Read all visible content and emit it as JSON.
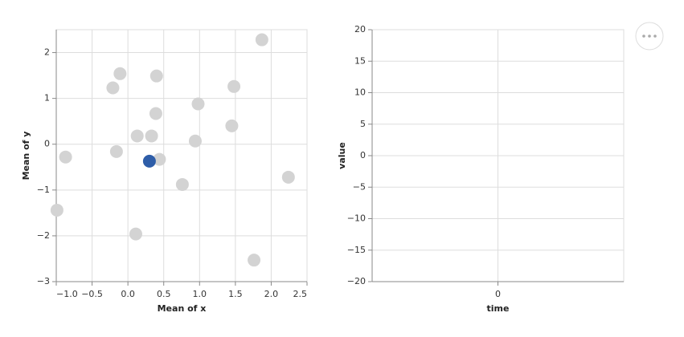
{
  "chart_data": [
    {
      "type": "scatter",
      "x_label": "Mean of x",
      "y_label": "Mean of y",
      "x": [
        1.87,
        -0.11,
        0.4,
        -0.21,
        1.48,
        0.39,
        0.98,
        1.45,
        0.13,
        0.33,
        0.94,
        -0.87,
        -0.16,
        0.44,
        2.24,
        0.76,
        -0.99,
        0.11,
        1.76,
        0.3
      ],
      "values": [
        2.28,
        1.54,
        1.49,
        1.23,
        1.26,
        0.67,
        0.88,
        0.4,
        0.18,
        0.18,
        0.07,
        -0.28,
        -0.16,
        -0.33,
        -0.72,
        -0.88,
        -1.44,
        -1.96,
        -2.53,
        -0.37
      ],
      "color": "#d3d3d3",
      "selected": 19,
      "selected_color": "#2e5da8",
      "xlim": [
        -1,
        2.5
      ],
      "xticks": [
        {
          "value": -1,
          "label": "−1.0"
        },
        {
          "value": -0.5,
          "label": "−0.5"
        },
        {
          "value": 0,
          "label": "0.0"
        },
        {
          "value": 0.5,
          "label": "0.5"
        },
        {
          "value": 1,
          "label": "1.0"
        },
        {
          "value": 1.5,
          "label": "1.5"
        },
        {
          "value": 2,
          "label": "2.0"
        },
        {
          "value": 2.5,
          "label": "2.5"
        }
      ],
      "ylim": [
        -3,
        2.5
      ],
      "yticks": [
        {
          "value": -3,
          "label": "−3"
        },
        {
          "value": -2,
          "label": "−2"
        },
        {
          "value": -1,
          "label": "−1"
        },
        0,
        1,
        2
      ],
      "grid": true
    },
    {
      "type": "line",
      "x_label": "time",
      "y_label": "value",
      "x": [],
      "values": [],
      "color": "#4c78a8",
      "xlim": [
        -1,
        1
      ],
      "xticks": [
        0
      ],
      "ylim": [
        -20,
        20
      ],
      "yticks": [
        {
          "value": -20,
          "label": "−20"
        },
        {
          "value": -15,
          "label": "−15"
        },
        {
          "value": -10,
          "label": "−10"
        },
        {
          "value": -5,
          "label": "−5"
        },
        0,
        5,
        10,
        15,
        20
      ],
      "grid": true
    }
  ]
}
